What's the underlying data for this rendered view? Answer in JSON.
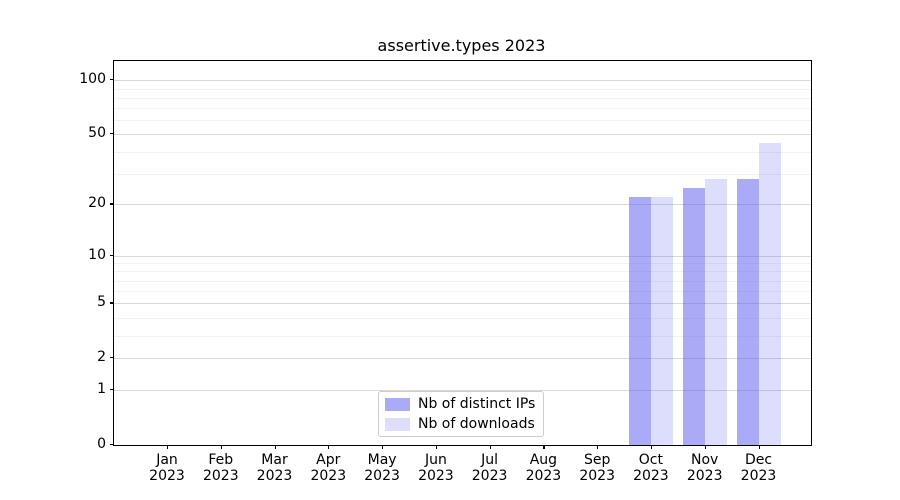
{
  "title": "assertive.types 2023",
  "chart_data": {
    "type": "bar",
    "title": "assertive.types 2023",
    "xlabel": "",
    "ylabel": "",
    "y_scale": "log1p",
    "ylim": [
      0,
      128
    ],
    "grid": true,
    "legend_position": "lower center",
    "y_ticks": [
      0,
      1,
      2,
      5,
      10,
      20,
      50,
      100
    ],
    "y_minor_ticks": [
      3,
      4,
      6,
      7,
      8,
      9,
      30,
      40,
      60,
      70,
      80,
      90
    ],
    "categories": [
      {
        "month": "Jan",
        "year": "2023"
      },
      {
        "month": "Feb",
        "year": "2023"
      },
      {
        "month": "Mar",
        "year": "2023"
      },
      {
        "month": "Apr",
        "year": "2023"
      },
      {
        "month": "May",
        "year": "2023"
      },
      {
        "month": "Jun",
        "year": "2023"
      },
      {
        "month": "Jul",
        "year": "2023"
      },
      {
        "month": "Aug",
        "year": "2023"
      },
      {
        "month": "Sep",
        "year": "2023"
      },
      {
        "month": "Oct",
        "year": "2023"
      },
      {
        "month": "Nov",
        "year": "2023"
      },
      {
        "month": "Dec",
        "year": "2023"
      }
    ],
    "series": [
      {
        "name": "Nb of distinct IPs",
        "color": "#5555ee",
        "alpha": 0.5,
        "values": [
          0,
          0,
          0,
          0,
          0,
          0,
          0,
          0,
          0,
          22,
          25,
          28
        ]
      },
      {
        "name": "Nb of downloads",
        "color": "#5555ee",
        "alpha": 0.2,
        "values": [
          0,
          0,
          0,
          0,
          0,
          0,
          0,
          0,
          0,
          22,
          28,
          45
        ]
      }
    ],
    "colors": {
      "major_grid": "#d9d9d9",
      "minor_grid": "#f2f2f2",
      "spine": "#000000",
      "legend_border": "#cccccc",
      "background": "#ffffff"
    }
  }
}
